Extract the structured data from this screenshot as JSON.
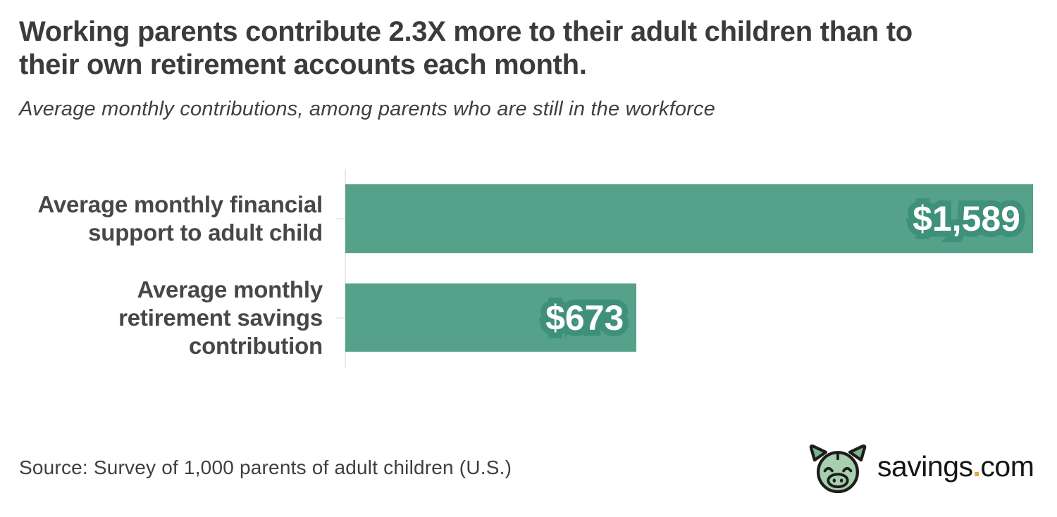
{
  "header": {
    "title_lines": [
      "Working parents contribute 2.3X more to their adult children than to",
      "their own retirement accounts each month."
    ],
    "subtitle": "Average monthly contributions, among parents who are still in the workforce"
  },
  "chart_data": {
    "type": "bar",
    "orientation": "horizontal",
    "title": "Working parents contribute 2.3X more to their adult children than to their own retirement accounts each month.",
    "subtitle": "Average monthly contributions, among parents who are still in the workforce",
    "categories": [
      "Average monthly financial support to adult child",
      "Average monthly retirement savings contribution"
    ],
    "values": [
      1589,
      673
    ],
    "rows": [
      {
        "label_lines": [
          "Average monthly financial",
          "support to adult child"
        ],
        "value": 1589,
        "value_label": "$1,589"
      },
      {
        "label_lines": [
          "Average monthly",
          "retirement savings",
          "contribution"
        ],
        "value": 673,
        "value_label": "$673"
      }
    ],
    "xlim": [
      0,
      1589
    ],
    "grid": false,
    "legend": false,
    "bar_color": "#55a189",
    "value_text_color": "#ffffff",
    "value_outline_color": "#3f9078",
    "axis_color": "#e9e9e9"
  },
  "footer": {
    "source": "Source: Survey of 1,000 parents of adult children (U.S.)",
    "logo": {
      "icon": "pig-mascot-icon",
      "brand_name": "savings",
      "brand_dot": ".",
      "brand_tld": "com",
      "dot_color": "#e9a43c",
      "icon_fill": "#a6cfae",
      "icon_ear_fill": "#7db58c",
      "icon_outline": "#1d1d1d"
    }
  }
}
